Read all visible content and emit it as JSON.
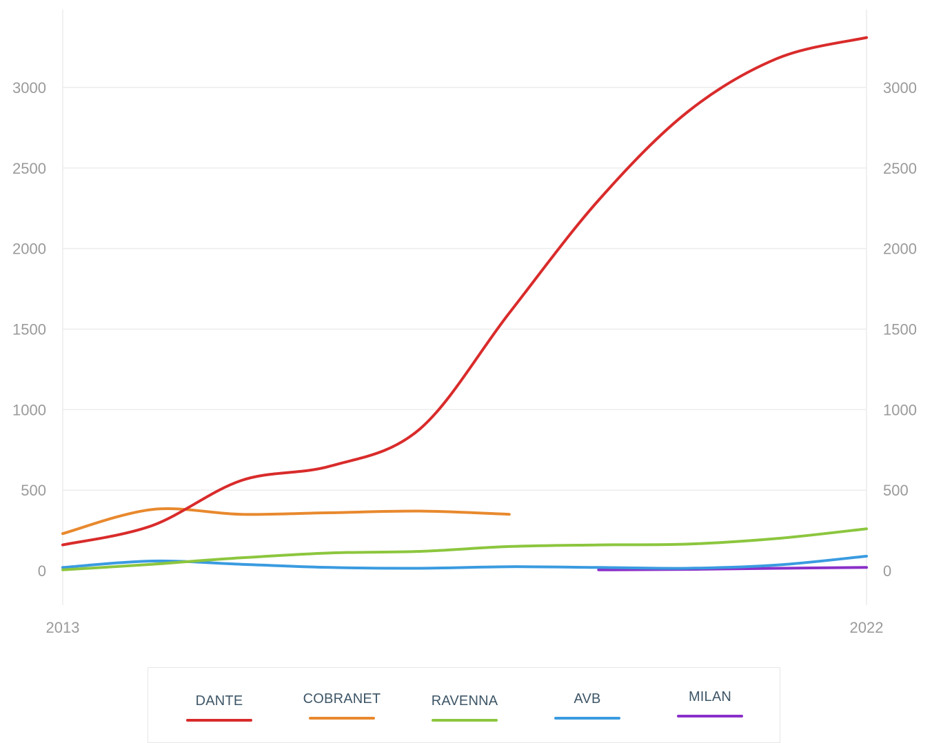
{
  "chart_data": {
    "type": "line",
    "x": [
      2013,
      2014,
      2015,
      2016,
      2017,
      2018,
      2019,
      2020,
      2021,
      2022
    ],
    "x_tick_labels": [
      "2013",
      "2022"
    ],
    "y_ticks": [
      0,
      500,
      1000,
      1500,
      2000,
      2500,
      3000
    ],
    "y_tick_labels": [
      "0",
      "500",
      "1000",
      "1500",
      "2000",
      "2500",
      "3000"
    ],
    "ylim": [
      -200,
      3500
    ],
    "xlim": [
      2013,
      2022
    ],
    "grid": true,
    "dual_y_axis": true,
    "legend_position": "bottom",
    "series": [
      {
        "name": "DANTE",
        "color": "#d92b2b",
        "x": [
          2013,
          2014,
          2015,
          2016,
          2017,
          2018,
          2019,
          2020,
          2021,
          2022
        ],
        "values": [
          160,
          280,
          560,
          650,
          880,
          1600,
          2300,
          2850,
          3180,
          3310
        ]
      },
      {
        "name": "COBRANET",
        "color": "#e8892e",
        "x": [
          2013,
          2014,
          2015,
          2016,
          2017,
          2018
        ],
        "values": [
          230,
          380,
          350,
          360,
          370,
          350
        ]
      },
      {
        "name": "RAVENNA",
        "color": "#8cc63e",
        "x": [
          2013,
          2014,
          2015,
          2016,
          2017,
          2018,
          2019,
          2020,
          2021,
          2022
        ],
        "values": [
          5,
          40,
          80,
          110,
          120,
          150,
          160,
          165,
          200,
          260
        ]
      },
      {
        "name": "AVB",
        "color": "#3a9be0",
        "x": [
          2013,
          2014,
          2015,
          2016,
          2017,
          2018,
          2019,
          2020,
          2021,
          2022
        ],
        "values": [
          20,
          60,
          40,
          20,
          15,
          25,
          20,
          15,
          35,
          90
        ]
      },
      {
        "name": "MILAN",
        "color": "#8a2fc9",
        "x": [
          2019,
          2020,
          2021,
          2022
        ],
        "values": [
          5,
          8,
          15,
          20
        ]
      }
    ]
  },
  "legend": {
    "items": [
      {
        "label": "DANTE",
        "color": "#d92b2b"
      },
      {
        "label": "COBRANET",
        "color": "#e8892e"
      },
      {
        "label": "RAVENNA",
        "color": "#8cc63e"
      },
      {
        "label": "AVB",
        "color": "#3a9be0"
      },
      {
        "label": "MILAN",
        "color": "#8a2fc9"
      }
    ]
  }
}
